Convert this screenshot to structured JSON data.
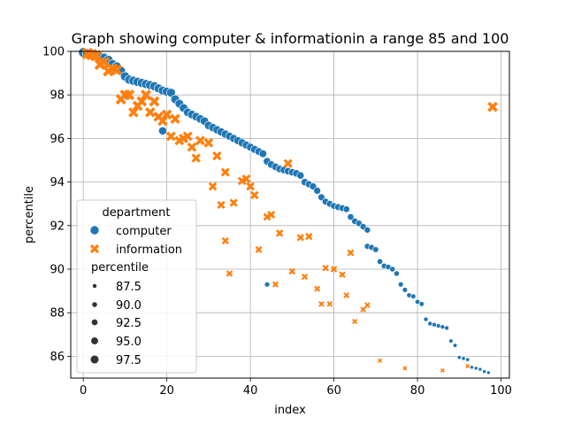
{
  "chart_data": {
    "type": "scatter",
    "title": "Graph showing computer & informationin a range 85 and 100",
    "xlabel": "index",
    "ylabel": "percentile",
    "xlim": [
      -3,
      102
    ],
    "ylim": [
      85,
      100
    ],
    "xticks": [
      0,
      20,
      40,
      60,
      80,
      100
    ],
    "yticks": [
      86,
      88,
      90,
      92,
      94,
      96,
      98,
      100
    ],
    "grid": true,
    "legend": {
      "placement": "lower-left",
      "hue_title": "department",
      "size_title": "percentile",
      "size_values": [
        87.5,
        90.0,
        92.5,
        95.0,
        97.5
      ],
      "size_labels": [
        "87.5",
        "90.0",
        "92.5",
        "95.0",
        "97.5"
      ]
    },
    "colors": {
      "computer": "#1f77b4",
      "information": "#ff7f0e"
    },
    "series": [
      {
        "name": "computer",
        "marker": "circle",
        "x": [
          0,
          1,
          2,
          3,
          4,
          5,
          6,
          7,
          8,
          9,
          10,
          11,
          12,
          13,
          14,
          15,
          16,
          17,
          18,
          19,
          19,
          20,
          21,
          22,
          23,
          24,
          25,
          26,
          27,
          28,
          29,
          30,
          31,
          32,
          33,
          34,
          35,
          36,
          37,
          38,
          39,
          40,
          41,
          42,
          43,
          44,
          44,
          45,
          46,
          47,
          48,
          49,
          50,
          51,
          52,
          53,
          54,
          55,
          56,
          57,
          58,
          59,
          60,
          61,
          62,
          63,
          64,
          65,
          66,
          67,
          68,
          68,
          69,
          70,
          71,
          72,
          73,
          74,
          75,
          76,
          77,
          78,
          79,
          80,
          81,
          82,
          83,
          84,
          85,
          86,
          87,
          88,
          89,
          90,
          91,
          92,
          93,
          94,
          95,
          96,
          97
        ],
        "y": [
          99.95,
          99.9,
          99.85,
          99.8,
          99.75,
          99.7,
          99.6,
          99.4,
          99.3,
          99.1,
          98.85,
          98.7,
          98.65,
          98.6,
          98.55,
          98.5,
          98.45,
          98.4,
          98.3,
          98.2,
          96.35,
          98.15,
          98.1,
          97.8,
          97.6,
          97.4,
          97.2,
          97.1,
          97.0,
          96.9,
          96.8,
          96.6,
          96.5,
          96.4,
          96.3,
          96.2,
          96.1,
          96.0,
          95.9,
          95.8,
          95.7,
          95.6,
          95.5,
          95.4,
          95.3,
          94.95,
          89.3,
          94.8,
          94.7,
          94.6,
          94.55,
          94.5,
          94.45,
          94.4,
          94.3,
          94.0,
          93.9,
          93.8,
          93.6,
          93.3,
          93.1,
          93.0,
          92.9,
          92.85,
          92.8,
          92.75,
          92.4,
          92.2,
          92.1,
          91.95,
          91.8,
          91.05,
          91.0,
          90.9,
          90.35,
          90.15,
          90.1,
          90.0,
          89.8,
          89.3,
          89.05,
          88.8,
          88.75,
          88.5,
          88.4,
          87.7,
          87.5,
          87.45,
          87.4,
          87.35,
          87.3,
          86.7,
          86.5,
          85.95,
          85.9,
          85.85,
          85.5,
          85.45,
          85.4,
          85.3,
          85.25
        ],
        "size": [
          99.95,
          99.9,
          99.85,
          99.8,
          99.75,
          99.7,
          99.6,
          99.4,
          99.3,
          99.1,
          98.85,
          98.7,
          98.65,
          98.6,
          98.55,
          98.5,
          98.45,
          98.4,
          98.3,
          98.2,
          96.35,
          98.15,
          98.1,
          97.8,
          97.6,
          97.4,
          97.2,
          97.1,
          97.0,
          96.9,
          96.8,
          96.6,
          96.5,
          96.4,
          96.3,
          96.2,
          96.1,
          96.0,
          95.9,
          95.8,
          95.7,
          95.6,
          95.5,
          95.4,
          95.3,
          94.95,
          89.3,
          94.8,
          94.7,
          94.6,
          94.55,
          94.5,
          94.45,
          94.4,
          94.3,
          94.0,
          93.9,
          93.8,
          93.6,
          93.3,
          93.1,
          93.0,
          92.9,
          92.85,
          92.8,
          92.75,
          92.4,
          92.2,
          92.1,
          91.95,
          91.8,
          91.05,
          91.0,
          90.9,
          90.35,
          90.15,
          90.1,
          90.0,
          89.8,
          89.3,
          89.05,
          88.8,
          88.75,
          88.5,
          88.4,
          87.7,
          87.5,
          87.45,
          87.4,
          87.35,
          87.3,
          86.7,
          86.5,
          85.95,
          85.9,
          85.85,
          85.5,
          85.45,
          85.4,
          85.3,
          85.25
        ]
      },
      {
        "name": "information",
        "marker": "x",
        "x": [
          1,
          2,
          3,
          4,
          5,
          6,
          7,
          8,
          9,
          10,
          11,
          12,
          13,
          14,
          15,
          16,
          17,
          18,
          19,
          20,
          21,
          22,
          23,
          24,
          25,
          26,
          27,
          28,
          30,
          31,
          32,
          33,
          34,
          34,
          35,
          36,
          38,
          39,
          40,
          41,
          42,
          44,
          45,
          46,
          47,
          49,
          50,
          52,
          53,
          54,
          56,
          57,
          58,
          59,
          60,
          62,
          63,
          64,
          65,
          67,
          68,
          71,
          77,
          86,
          92,
          98
        ],
        "y": [
          99.9,
          99.85,
          99.8,
          99.4,
          99.5,
          99.1,
          99.2,
          99.15,
          97.8,
          98.0,
          98.0,
          97.2,
          97.5,
          97.7,
          98.0,
          97.2,
          97.7,
          97.0,
          96.8,
          97.1,
          96.1,
          96.9,
          95.9,
          96.0,
          96.1,
          95.6,
          95.1,
          95.9,
          95.8,
          93.8,
          95.2,
          92.95,
          94.45,
          91.3,
          89.8,
          93.05,
          94.05,
          94.15,
          93.8,
          93.4,
          90.9,
          92.4,
          92.5,
          89.3,
          91.65,
          94.85,
          89.9,
          91.45,
          89.65,
          91.5,
          89.1,
          88.4,
          90.05,
          88.4,
          90.0,
          89.75,
          88.8,
          90.75,
          87.6,
          88.15,
          88.35,
          85.8,
          85.45,
          85.35,
          85.55,
          97.45
        ],
        "size": [
          99.9,
          99.85,
          99.8,
          99.4,
          99.5,
          99.1,
          99.2,
          99.15,
          97.8,
          98.0,
          98.0,
          97.2,
          97.5,
          97.7,
          98.0,
          97.2,
          97.7,
          97.0,
          96.8,
          97.1,
          96.1,
          96.9,
          95.9,
          96.0,
          96.1,
          95.6,
          95.1,
          95.9,
          95.8,
          93.8,
          95.2,
          92.95,
          94.45,
          91.3,
          89.8,
          93.05,
          94.05,
          94.15,
          93.8,
          93.4,
          90.9,
          92.4,
          92.5,
          89.3,
          91.65,
          94.85,
          89.9,
          91.45,
          89.65,
          91.5,
          89.1,
          88.4,
          90.05,
          88.4,
          90.0,
          89.75,
          88.8,
          90.75,
          87.6,
          88.15,
          88.35,
          85.8,
          85.45,
          85.35,
          85.55,
          97.45
        ]
      }
    ]
  }
}
